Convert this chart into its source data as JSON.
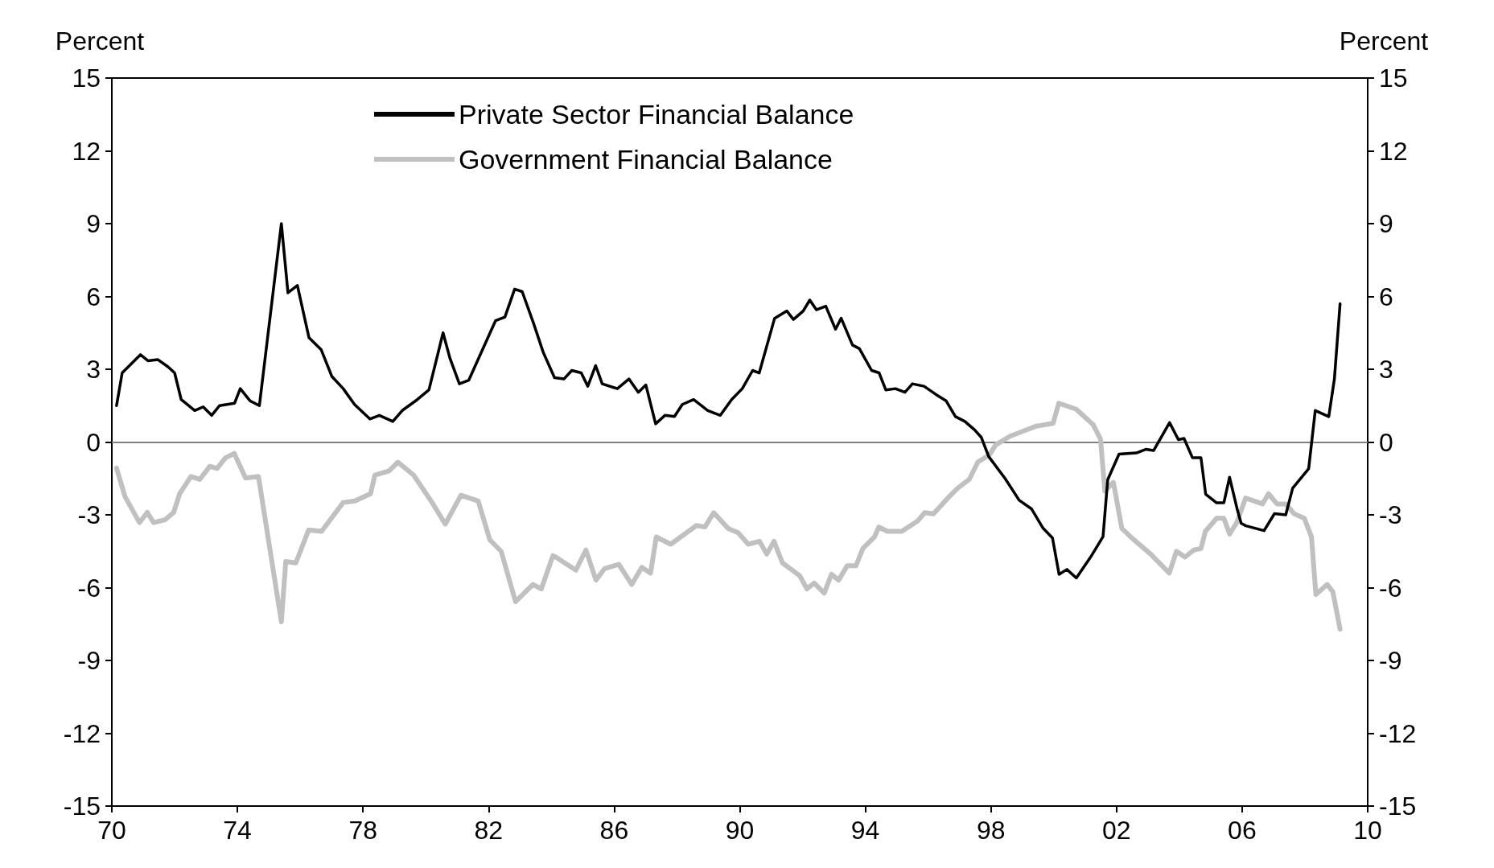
{
  "chart_data": {
    "type": "line",
    "ylabel": "Percent",
    "y2label": "Percent",
    "xlim": [
      1970,
      2010
    ],
    "xticks": [
      {
        "value": 1970,
        "label": "70"
      },
      {
        "value": 1974,
        "label": "74"
      },
      {
        "value": 1978,
        "label": "78"
      },
      {
        "value": 1982,
        "label": "82"
      },
      {
        "value": 1986,
        "label": "86"
      },
      {
        "value": 1990,
        "label": "90"
      },
      {
        "value": 1994,
        "label": "94"
      },
      {
        "value": 1998,
        "label": "98"
      },
      {
        "value": 2002,
        "label": "02"
      },
      {
        "value": 2006,
        "label": "06"
      },
      {
        "value": 2010,
        "label": "10"
      }
    ],
    "ylim": [
      -15,
      15
    ],
    "yticks": [
      -15,
      -12,
      -9,
      -6,
      -3,
      0,
      3,
      6,
      9,
      12,
      15
    ],
    "y2lim": [
      -15,
      15
    ],
    "y2ticks": [
      -15,
      -12,
      -9,
      -6,
      -3,
      0,
      3,
      6,
      9,
      12,
      15
    ],
    "grid": false,
    "legend": "top",
    "marker": "none",
    "line_style": "solid",
    "ref_lines": [
      {
        "axis": "y",
        "value": 0,
        "label": null,
        "color": "#808080"
      }
    ],
    "series": [
      {
        "name": "Private Sector Financial Balance",
        "color": "#000000",
        "x": [
          1970.15,
          1970.33,
          1970.91,
          1971.15,
          1971.46,
          1971.79,
          1972.0,
          1972.21,
          1972.64,
          1972.91,
          1973.18,
          1973.43,
          1973.91,
          1974.09,
          1974.4,
          1974.7,
          1975.4,
          1975.61,
          1975.91,
          1976.28,
          1976.67,
          1977.01,
          1977.37,
          1977.73,
          1978.22,
          1978.52,
          1978.95,
          1979.25,
          1979.73,
          1980.1,
          1980.55,
          1980.77,
          1981.07,
          1981.37,
          1982.22,
          1982.52,
          1982.83,
          1983.07,
          1983.43,
          1983.74,
          1984.1,
          1984.4,
          1984.65,
          1984.95,
          1985.16,
          1985.41,
          1985.62,
          1986.1,
          1986.47,
          1986.77,
          1987.01,
          1987.32,
          1987.62,
          1987.92,
          1988.17,
          1988.53,
          1988.98,
          1989.38,
          1989.74,
          1990.08,
          1990.41,
          1990.62,
          1991.11,
          1991.5,
          1991.71,
          1992.02,
          1992.23,
          1992.44,
          1992.74,
          1993.05,
          1993.23,
          1993.59,
          1993.81,
          1994.2,
          1994.44,
          1994.65,
          1994.96,
          1995.26,
          1995.5,
          1995.87,
          1996.26,
          1996.57,
          1996.87,
          1997.17,
          1997.48,
          1997.69,
          1997.93,
          1998.45,
          1998.9,
          1999.29,
          1999.66,
          1999.96,
          2000.17,
          2000.42,
          2000.72,
          2001.17,
          2001.57,
          2001.72,
          2002.08,
          2002.63,
          2002.93,
          2003.18,
          2003.69,
          2003.97,
          2004.15,
          2004.42,
          2004.69,
          2004.84,
          2005.18,
          2005.42,
          2005.6,
          2005.84,
          2005.97,
          2006.12,
          2006.7,
          2007.03,
          2007.39,
          2007.61,
          2008.12,
          2008.33,
          2008.76,
          2008.94,
          2009.12
        ],
        "values": [
          1.5,
          2.85,
          3.6,
          3.35,
          3.4,
          3.1,
          2.85,
          1.75,
          1.3,
          1.45,
          1.1,
          1.5,
          1.6,
          2.2,
          1.7,
          1.5,
          9.0,
          6.15,
          6.45,
          4.3,
          3.8,
          2.7,
          2.2,
          1.55,
          0.95,
          1.1,
          0.85,
          1.3,
          1.75,
          2.15,
          4.5,
          3.45,
          2.4,
          2.55,
          5.0,
          5.15,
          6.3,
          6.2,
          4.9,
          3.7,
          2.65,
          2.6,
          2.95,
          2.85,
          2.3,
          3.15,
          2.4,
          2.2,
          2.6,
          2.05,
          2.35,
          0.75,
          1.1,
          1.05,
          1.55,
          1.75,
          1.3,
          1.1,
          1.75,
          2.2,
          2.95,
          2.85,
          5.1,
          5.4,
          5.05,
          5.4,
          5.85,
          5.45,
          5.6,
          4.65,
          5.1,
          4.0,
          3.85,
          2.95,
          2.85,
          2.15,
          2.2,
          2.05,
          2.4,
          2.3,
          1.95,
          1.7,
          1.05,
          0.85,
          0.5,
          0.2,
          -0.6,
          -1.5,
          -2.4,
          -2.75,
          -3.55,
          -3.95,
          -5.45,
          -5.25,
          -5.6,
          -4.75,
          -3.9,
          -1.55,
          -0.5,
          -0.45,
          -0.3,
          -0.35,
          0.8,
          0.1,
          0.15,
          -0.65,
          -0.65,
          -2.15,
          -2.5,
          -2.5,
          -1.45,
          -2.75,
          -3.35,
          -3.45,
          -3.65,
          -2.95,
          -3.0,
          -1.9,
          -1.1,
          1.3,
          1.05,
          2.6,
          5.7
        ]
      },
      {
        "name": "Government Financial Balance",
        "color": "#c0c0c0",
        "x": [
          1970.15,
          1970.42,
          1970.88,
          1971.13,
          1971.33,
          1971.7,
          1971.97,
          1972.16,
          1972.52,
          1972.8,
          1973.12,
          1973.35,
          1973.62,
          1973.9,
          1974.26,
          1974.67,
          1975.4,
          1975.54,
          1975.86,
          1976.27,
          1976.68,
          1977.37,
          1977.74,
          1978.24,
          1978.38,
          1978.83,
          1979.11,
          1979.61,
          1980.2,
          1980.62,
          1981.12,
          1981.67,
          1982.04,
          1982.4,
          1982.86,
          1983.41,
          1983.68,
          1984.05,
          1984.14,
          1984.78,
          1985.1,
          1985.42,
          1985.69,
          1986.15,
          1986.56,
          1986.88,
          1987.16,
          1987.34,
          1987.8,
          1988.62,
          1988.89,
          1989.17,
          1989.63,
          1989.95,
          1990.27,
          1990.63,
          1990.86,
          1991.09,
          1991.36,
          1991.91,
          1992.14,
          1992.37,
          1992.69,
          1992.92,
          1993.15,
          1993.42,
          1993.7,
          1993.92,
          1994.29,
          1994.43,
          1994.7,
          1995.16,
          1995.66,
          1995.89,
          1996.17,
          1996.67,
          1996.94,
          1997.31,
          1997.58,
          1997.95,
          1998.15,
          1998.61,
          1999.43,
          1999.98,
          2000.16,
          2000.71,
          2001.26,
          2001.49,
          2001.63,
          2001.9,
          2002.17,
          2002.45,
          2003.09,
          2003.68,
          2003.91,
          2004.18,
          2004.46,
          2004.69,
          2004.83,
          2005.19,
          2005.42,
          2005.6,
          2005.83,
          2006.11,
          2006.65,
          2006.84,
          2007.11,
          2007.39,
          2007.66,
          2007.98,
          2008.21,
          2008.35,
          2008.71,
          2008.89,
          2009.12
        ],
        "values": [
          -1.07,
          -2.25,
          -3.32,
          -2.9,
          -3.32,
          -3.2,
          -2.9,
          -2.13,
          -1.42,
          -1.54,
          -1.0,
          -1.09,
          -0.65,
          -0.47,
          -1.48,
          -1.42,
          -7.41,
          -4.92,
          -4.98,
          -3.62,
          -3.68,
          -2.49,
          -2.43,
          -2.13,
          -1.36,
          -1.19,
          -0.83,
          -1.36,
          -2.49,
          -3.38,
          -2.19,
          -2.43,
          -4.03,
          -4.5,
          -6.58,
          -5.87,
          -6.05,
          -4.68,
          -4.74,
          -5.28,
          -4.45,
          -5.69,
          -5.22,
          -5.04,
          -5.87,
          -5.16,
          -5.4,
          -3.91,
          -4.21,
          -3.44,
          -3.5,
          -2.91,
          -3.56,
          -3.74,
          -4.21,
          -4.09,
          -4.62,
          -4.09,
          -4.98,
          -5.51,
          -6.05,
          -5.81,
          -6.23,
          -5.45,
          -5.69,
          -5.1,
          -5.1,
          -4.39,
          -3.91,
          -3.5,
          -3.68,
          -3.68,
          -3.26,
          -2.91,
          -2.96,
          -2.25,
          -1.9,
          -1.54,
          -0.83,
          -0.53,
          -0.12,
          0.24,
          0.65,
          0.77,
          1.6,
          1.36,
          0.71,
          0.12,
          -2.02,
          -1.66,
          -3.56,
          -3.91,
          -4.62,
          -5.4,
          -4.5,
          -4.74,
          -4.45,
          -4.39,
          -3.68,
          -3.14,
          -3.14,
          -3.79,
          -3.32,
          -2.31,
          -2.55,
          -2.13,
          -2.55,
          -2.55,
          -2.96,
          -3.14,
          -3.91,
          -6.28,
          -5.87,
          -6.17,
          -7.71
        ]
      }
    ]
  }
}
